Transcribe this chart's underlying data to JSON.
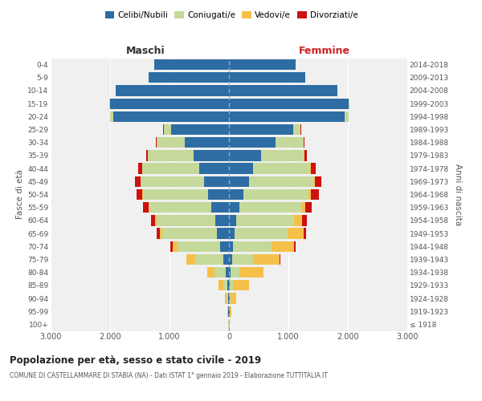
{
  "age_groups": [
    "100+",
    "95-99",
    "90-94",
    "85-89",
    "80-84",
    "75-79",
    "70-74",
    "65-69",
    "60-64",
    "55-59",
    "50-54",
    "45-49",
    "40-44",
    "35-39",
    "30-34",
    "25-29",
    "20-24",
    "15-19",
    "10-14",
    "5-9",
    "0-4"
  ],
  "birth_years": [
    "≤ 1918",
    "1919-1923",
    "1924-1928",
    "1929-1933",
    "1934-1938",
    "1939-1943",
    "1944-1948",
    "1949-1953",
    "1954-1958",
    "1959-1963",
    "1964-1968",
    "1969-1973",
    "1974-1978",
    "1979-1983",
    "1984-1988",
    "1989-1993",
    "1994-1998",
    "1999-2003",
    "2004-2008",
    "2009-2013",
    "2014-2018"
  ],
  "colors": {
    "celibe": "#2e6da4",
    "coniugato": "#c5d99a",
    "vedovo": "#f5c04a",
    "divorziato": "#cc1111"
  },
  "maschi": {
    "celibe": [
      5,
      8,
      15,
      25,
      50,
      90,
      150,
      200,
      230,
      300,
      350,
      420,
      500,
      600,
      750,
      970,
      1950,
      2000,
      1900,
      1350,
      1260
    ],
    "coniugato": [
      2,
      5,
      20,
      70,
      200,
      480,
      720,
      920,
      980,
      1040,
      1100,
      1060,
      960,
      760,
      470,
      130,
      55,
      15,
      8,
      3,
      2
    ],
    "vedovo": [
      2,
      8,
      28,
      75,
      115,
      140,
      75,
      45,
      28,
      18,
      10,
      7,
      5,
      3,
      2,
      1,
      0,
      0,
      0,
      0,
      0
    ],
    "divorziato": [
      0,
      0,
      0,
      2,
      5,
      12,
      38,
      55,
      75,
      85,
      100,
      95,
      65,
      32,
      12,
      4,
      1,
      0,
      0,
      0,
      0
    ]
  },
  "femmine": {
    "celibe": [
      5,
      8,
      12,
      18,
      25,
      50,
      70,
      90,
      120,
      170,
      240,
      340,
      410,
      540,
      790,
      1080,
      1950,
      2020,
      1820,
      1280,
      1120
    ],
    "coniugato": [
      1,
      5,
      18,
      55,
      150,
      360,
      640,
      900,
      980,
      1050,
      1100,
      1090,
      960,
      720,
      460,
      125,
      65,
      12,
      8,
      4,
      2
    ],
    "vedovo": [
      12,
      28,
      90,
      260,
      400,
      440,
      390,
      260,
      130,
      65,
      32,
      18,
      12,
      6,
      3,
      1,
      0,
      0,
      0,
      0,
      0
    ],
    "divorziato": [
      0,
      0,
      0,
      2,
      5,
      10,
      22,
      48,
      80,
      110,
      140,
      110,
      80,
      40,
      14,
      4,
      1,
      0,
      0,
      0,
      0
    ]
  },
  "xlim": 3000,
  "xlabel_maschi": "Maschi",
  "xlabel_femmine": "Femmine",
  "ylabel_left": "Fasce di età",
  "ylabel_right": "Anni di nascita",
  "title": "Popolazione per età, sesso e stato civile - 2019",
  "subtitle": "COMUNE DI CASTELLAMMARE DI STABIA (NA) - Dati ISTAT 1° gennaio 2019 - Elaborazione TUTTITALIA.IT",
  "legend_labels": [
    "Celibi/Nubili",
    "Coniugati/e",
    "Vedovi/e",
    "Divorziati/e"
  ],
  "bg_color": "#f0f0f0"
}
